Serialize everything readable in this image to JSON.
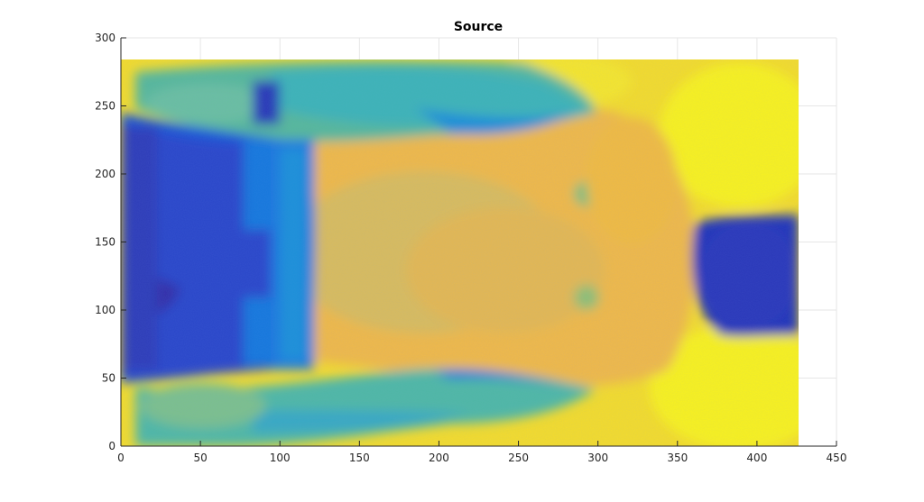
{
  "chart_data": {
    "type": "heatmap",
    "title": "Source",
    "xlabel": "",
    "ylabel": "",
    "xlim": [
      0,
      450
    ],
    "ylim": [
      0,
      300
    ],
    "x_ticks": [
      0,
      50,
      100,
      150,
      200,
      250,
      300,
      350,
      400,
      450
    ],
    "y_ticks": [
      0,
      50,
      100,
      150,
      200,
      250,
      300
    ],
    "image_extent": {
      "x": [
        0,
        426
      ],
      "y": [
        0,
        284
      ]
    },
    "grid": true,
    "colormap": "parula",
    "colormap_stops": [
      "#352a87",
      "#0f5cdd",
      "#1481d6",
      "#06a4ca",
      "#2eb7a4",
      "#87bf77",
      "#d1bb59",
      "#fec832",
      "#f9fb0e"
    ]
  }
}
